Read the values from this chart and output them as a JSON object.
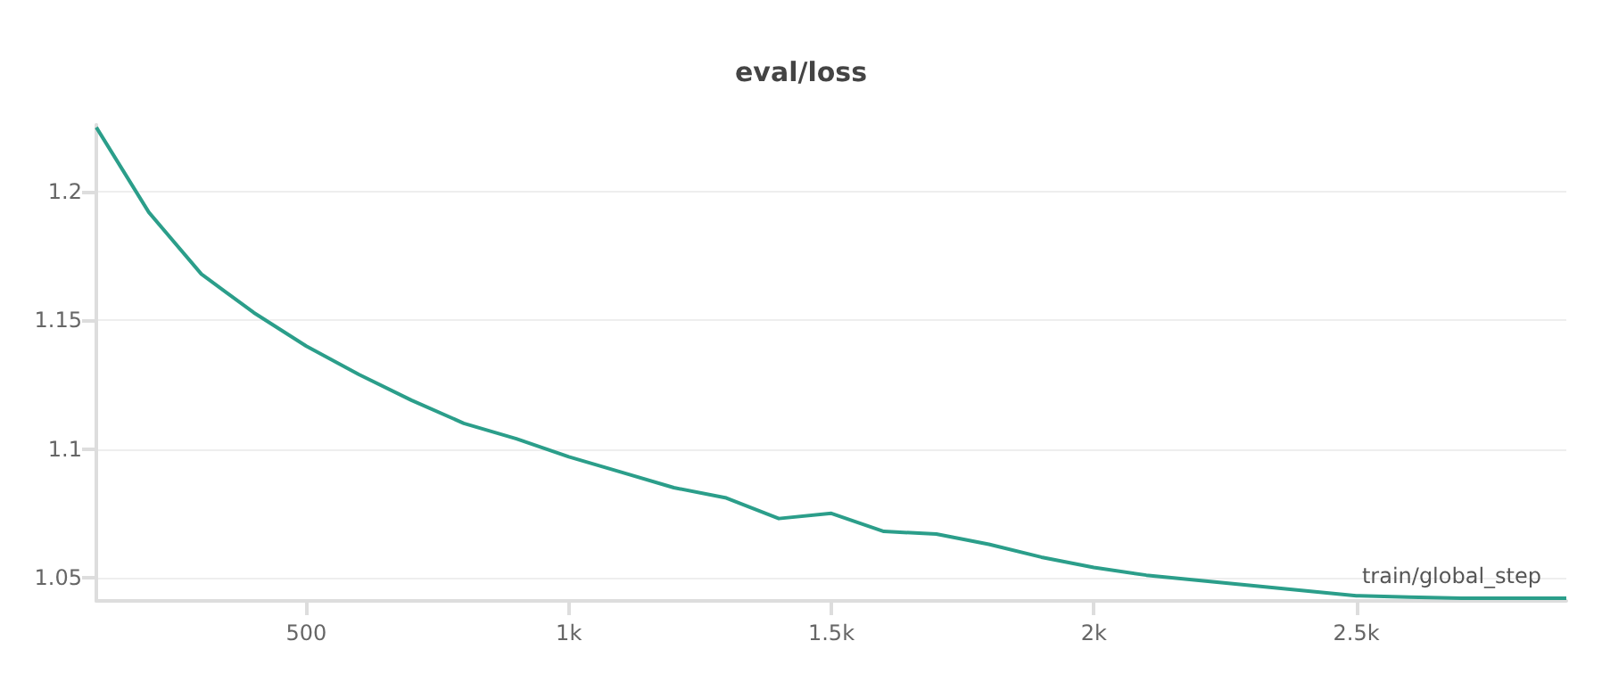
{
  "chart_data": {
    "type": "line",
    "title": "eval/loss",
    "xlabel": "train/global_step",
    "x": [
      100,
      200,
      300,
      400,
      500,
      600,
      700,
      800,
      900,
      1000,
      1100,
      1200,
      1300,
      1400,
      1500,
      1600,
      1700,
      1800,
      1900,
      2000,
      2100,
      2200,
      2300,
      2400,
      2500,
      2600,
      2700,
      2800,
      2900
    ],
    "series": [
      {
        "color": "#2b9e8a",
        "values": [
          1.225,
          1.192,
          1.168,
          1.153,
          1.14,
          1.129,
          1.119,
          1.11,
          1.104,
          1.097,
          1.091,
          1.085,
          1.081,
          1.073,
          1.075,
          1.068,
          1.067,
          1.063,
          1.058,
          1.054,
          1.051,
          1.049,
          1.047,
          1.045,
          1.043,
          1.0425,
          1.042,
          1.042,
          1.042
        ]
      }
    ],
    "xlim": [
      100,
      2900
    ],
    "xticks": [
      {
        "value": 500,
        "label": "500"
      },
      {
        "value": 1000,
        "label": "1k"
      },
      {
        "value": 1500,
        "label": "1.5k"
      },
      {
        "value": 2000,
        "label": "2k"
      },
      {
        "value": 2500,
        "label": "2.5k"
      }
    ],
    "ylim": [
      1.041,
      1.226
    ],
    "yticks": [
      1.05,
      1.1,
      1.15,
      1.2
    ],
    "grid": "y"
  }
}
